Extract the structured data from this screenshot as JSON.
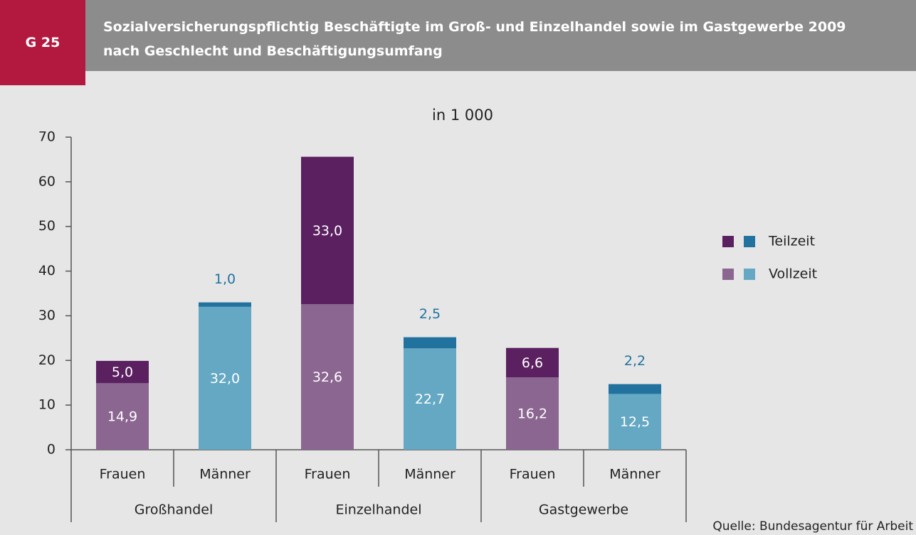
{
  "chart_data": {
    "type": "stacked_bar",
    "badge": "G 25",
    "title": "Sozialversicherungspflichtig Beschäftigte im Groß- und Einzelhandel sowie im Gastgewerbe 2009",
    "subtitle": "nach Geschlecht und Beschäftigungsumfang",
    "unit_label": "in 1 000",
    "source": "Quelle: Bundesagentur für Arbeit",
    "groups": [
      {
        "name": "Großhandel",
        "categories": [
          "Frauen",
          "Männer"
        ]
      },
      {
        "name": "Einzelhandel",
        "categories": [
          "Frauen",
          "Männer"
        ]
      },
      {
        "name": "Gastgewerbe",
        "categories": [
          "Frauen",
          "Männer"
        ]
      }
    ],
    "series": [
      {
        "name": "Vollzeit",
        "colors": [
          "#8a6690",
          "#64a8c4",
          "#8a6690",
          "#64a8c4",
          "#8a6690",
          "#64a8c4"
        ],
        "values": [
          14.9,
          32.0,
          32.6,
          22.7,
          16.2,
          12.5
        ],
        "value_labels": [
          "14,9",
          "32,0",
          "32,6",
          "22,7",
          "16,2",
          "12,5"
        ]
      },
      {
        "name": "Teilzeit",
        "colors": [
          "#5a2060",
          "#2272a0",
          "#5a2060",
          "#2272a0",
          "#5a2060",
          "#2272a0"
        ],
        "values": [
          5.0,
          1.0,
          33.0,
          2.5,
          6.6,
          2.2
        ],
        "value_labels": [
          "5,0",
          "1,0",
          "33,0",
          "2,5",
          "6,6",
          "2,2"
        ]
      }
    ],
    "ylim": [
      0,
      70
    ],
    "yticks": [
      0,
      10,
      20,
      30,
      40,
      50,
      60,
      70
    ]
  }
}
